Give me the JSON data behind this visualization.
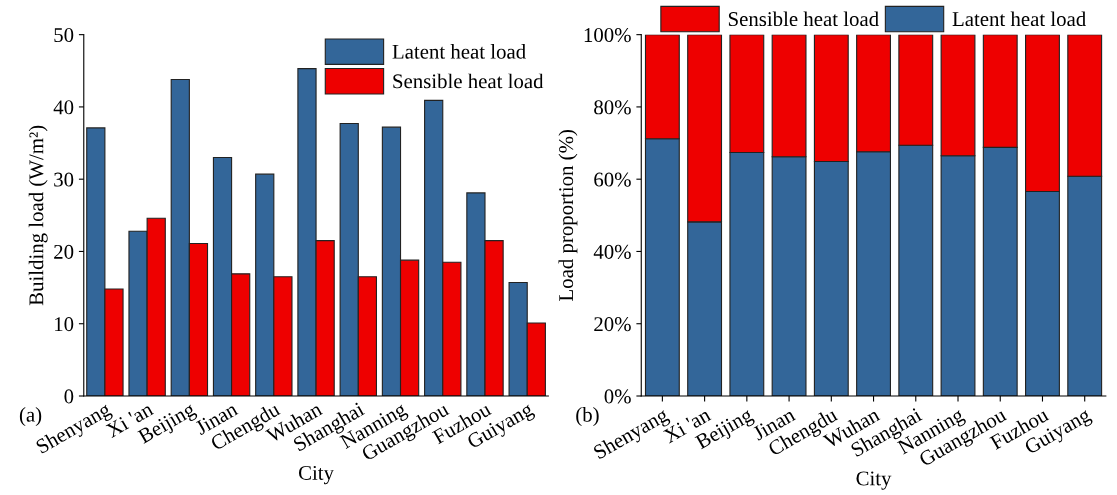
{
  "chart_data": [
    {
      "type": "bar",
      "xlabel": "City",
      "ylabel": "Building load (W/m²)",
      "annotations": [
        "(a)"
      ],
      "categories": [
        "Shenyang",
        "Xi 'an",
        "Beijing",
        "Jinan",
        "Chengdu",
        "Wuhan",
        "Shanghai",
        "Nanning",
        "Guangzhou",
        "Fuzhou",
        "Guiyang"
      ],
      "series": [
        {
          "name": "Latent heat load",
          "color": "#336699",
          "values": [
            37.1,
            22.8,
            43.8,
            33.0,
            30.7,
            45.3,
            37.7,
            37.2,
            40.9,
            28.1,
            15.7
          ]
        },
        {
          "name": "Sensible heat load",
          "color": "#ee0000",
          "values": [
            14.8,
            24.6,
            21.1,
            16.9,
            16.5,
            21.5,
            16.5,
            18.8,
            18.5,
            21.5,
            10.1
          ]
        }
      ],
      "ylim": [
        0,
        50
      ],
      "yticks": [
        0,
        10,
        20,
        30,
        40,
        50
      ],
      "legend": "top right",
      "grid": false
    },
    {
      "type": "bar",
      "stacked": true,
      "xlabel": "City",
      "ylabel": "Load proportion (%)",
      "annotations": [
        "(b)"
      ],
      "categories": [
        "Shenyang",
        "Xi 'an",
        "Beijing",
        "Jinan",
        "Chengdu",
        "Wuhan",
        "Shanghai",
        "Nanning",
        "Guangzhou",
        "Fuzhou",
        "Guiyang"
      ],
      "series": [
        {
          "name": "Latent heat load",
          "color": "#336699",
          "values": [
            71.2,
            48.2,
            67.4,
            66.2,
            64.9,
            67.6,
            69.4,
            66.5,
            68.8,
            56.6,
            60.8
          ]
        },
        {
          "name": "Sensible heat load",
          "color": "#ee0000",
          "values": [
            28.8,
            51.8,
            32.6,
            33.8,
            35.1,
            32.4,
            30.6,
            33.5,
            31.2,
            43.4,
            39.2
          ]
        }
      ],
      "ylim": [
        0,
        100
      ],
      "yticks": [
        {
          "value": 0,
          "label": "0%"
        },
        {
          "value": 20,
          "label": "20%"
        },
        {
          "value": 40,
          "label": "40%"
        },
        {
          "value": 60,
          "label": "60%"
        },
        {
          "value": 80,
          "label": "80%"
        },
        {
          "value": 100,
          "label": "100%"
        }
      ],
      "legend": "top",
      "grid": false
    }
  ]
}
